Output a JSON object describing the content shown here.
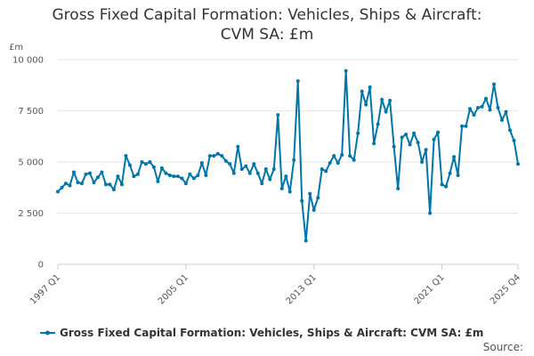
{
  "chart_data": {
    "type": "line",
    "title_lines": [
      "Gross Fixed Capital Formation: Vehicles, Ships & Aircraft:",
      "CVM SA: £m"
    ],
    "unit_label": "£m",
    "ylim": [
      0,
      10000
    ],
    "yticks": [
      0,
      2500,
      5000,
      7500,
      10000
    ],
    "ytick_labels": [
      "0",
      "2 500",
      "5 000",
      "7 500",
      "10 000"
    ],
    "xtick_labels": [
      "1997 Q1",
      "2005 Q1",
      "2013 Q1",
      "2021 Q1",
      "2025 Q4"
    ],
    "xtick_indices": [
      0,
      32,
      64,
      96,
      115
    ],
    "grid": true,
    "legend_position": "bottom",
    "source_label": "Source:",
    "color": "#0075a8",
    "series": [
      {
        "name": "Gross Fixed Capital Formation: Vehicles, Ships & Aircraft: CVM SA: £m",
        "x": [
          "1997 Q1",
          "1997 Q2",
          "1997 Q3",
          "1997 Q4",
          "1998 Q1",
          "1998 Q2",
          "1998 Q3",
          "1998 Q4",
          "1999 Q1",
          "1999 Q2",
          "1999 Q3",
          "1999 Q4",
          "2000 Q1",
          "2000 Q2",
          "2000 Q3",
          "2000 Q4",
          "2001 Q1",
          "2001 Q2",
          "2001 Q3",
          "2001 Q4",
          "2002 Q1",
          "2002 Q2",
          "2002 Q3",
          "2002 Q4",
          "2003 Q1",
          "2003 Q2",
          "2003 Q3",
          "2003 Q4",
          "2004 Q1",
          "2004 Q2",
          "2004 Q3",
          "2004 Q4",
          "2005 Q1",
          "2005 Q2",
          "2005 Q3",
          "2005 Q4",
          "2006 Q1",
          "2006 Q2",
          "2006 Q3",
          "2006 Q4",
          "2007 Q1",
          "2007 Q2",
          "2007 Q3",
          "2007 Q4",
          "2008 Q1",
          "2008 Q2",
          "2008 Q3",
          "2008 Q4",
          "2009 Q1",
          "2009 Q2",
          "2009 Q3",
          "2009 Q4",
          "2010 Q1",
          "2010 Q2",
          "2010 Q3",
          "2010 Q4",
          "2011 Q1",
          "2011 Q2",
          "2011 Q3",
          "2011 Q4",
          "2012 Q1",
          "2012 Q2",
          "2012 Q3",
          "2012 Q4",
          "2013 Q1",
          "2013 Q2",
          "2013 Q3",
          "2013 Q4",
          "2014 Q1",
          "2014 Q2",
          "2014 Q3",
          "2014 Q4",
          "2015 Q1",
          "2015 Q2",
          "2015 Q3",
          "2015 Q4",
          "2016 Q1",
          "2016 Q2",
          "2016 Q3",
          "2016 Q4",
          "2017 Q1",
          "2017 Q2",
          "2017 Q3",
          "2017 Q4",
          "2018 Q1",
          "2018 Q2",
          "2018 Q3",
          "2018 Q4",
          "2019 Q1",
          "2019 Q2",
          "2019 Q3",
          "2019 Q4",
          "2020 Q1",
          "2020 Q2",
          "2020 Q3",
          "2020 Q4",
          "2021 Q1",
          "2021 Q2",
          "2021 Q3",
          "2021 Q4",
          "2022 Q1",
          "2022 Q2",
          "2022 Q3",
          "2022 Q4",
          "2023 Q1",
          "2023 Q2",
          "2023 Q3",
          "2023 Q4",
          "2024 Q1",
          "2024 Q2",
          "2024 Q3",
          "2024 Q4",
          "2025 Q1",
          "2025 Q2",
          "2025 Q3",
          "2025 Q4"
        ],
        "values": [
          3550,
          3750,
          3950,
          3850,
          4500,
          4000,
          3950,
          4400,
          4450,
          4000,
          4250,
          4500,
          3900,
          3900,
          3650,
          4300,
          3900,
          5300,
          4850,
          4300,
          4400,
          5000,
          4900,
          5000,
          4750,
          4050,
          4700,
          4450,
          4350,
          4300,
          4300,
          4200,
          3950,
          4400,
          4200,
          4350,
          4950,
          4350,
          5300,
          5300,
          5400,
          5300,
          5050,
          4900,
          4450,
          5750,
          4650,
          4800,
          4450,
          4900,
          4450,
          3950,
          4650,
          4150,
          4650,
          7300,
          3700,
          4300,
          3550,
          5100,
          8950,
          3100,
          1150,
          3450,
          2650,
          3250,
          4650,
          4550,
          4950,
          5300,
          4950,
          5350,
          9450,
          5300,
          5100,
          6400,
          8450,
          7800,
          8650,
          5900,
          6850,
          8050,
          7450,
          8000,
          5750,
          3700,
          6200,
          6350,
          5850,
          6400,
          5950,
          5000,
          5600,
          2500,
          6100,
          6450,
          3900,
          3800,
          4450,
          5250,
          4350,
          6750,
          6750,
          7600,
          7300,
          7650,
          7700,
          8100,
          7550,
          8800,
          7650,
          7050,
          7450,
          6550,
          6050,
          4900
        ]
      }
    ]
  }
}
